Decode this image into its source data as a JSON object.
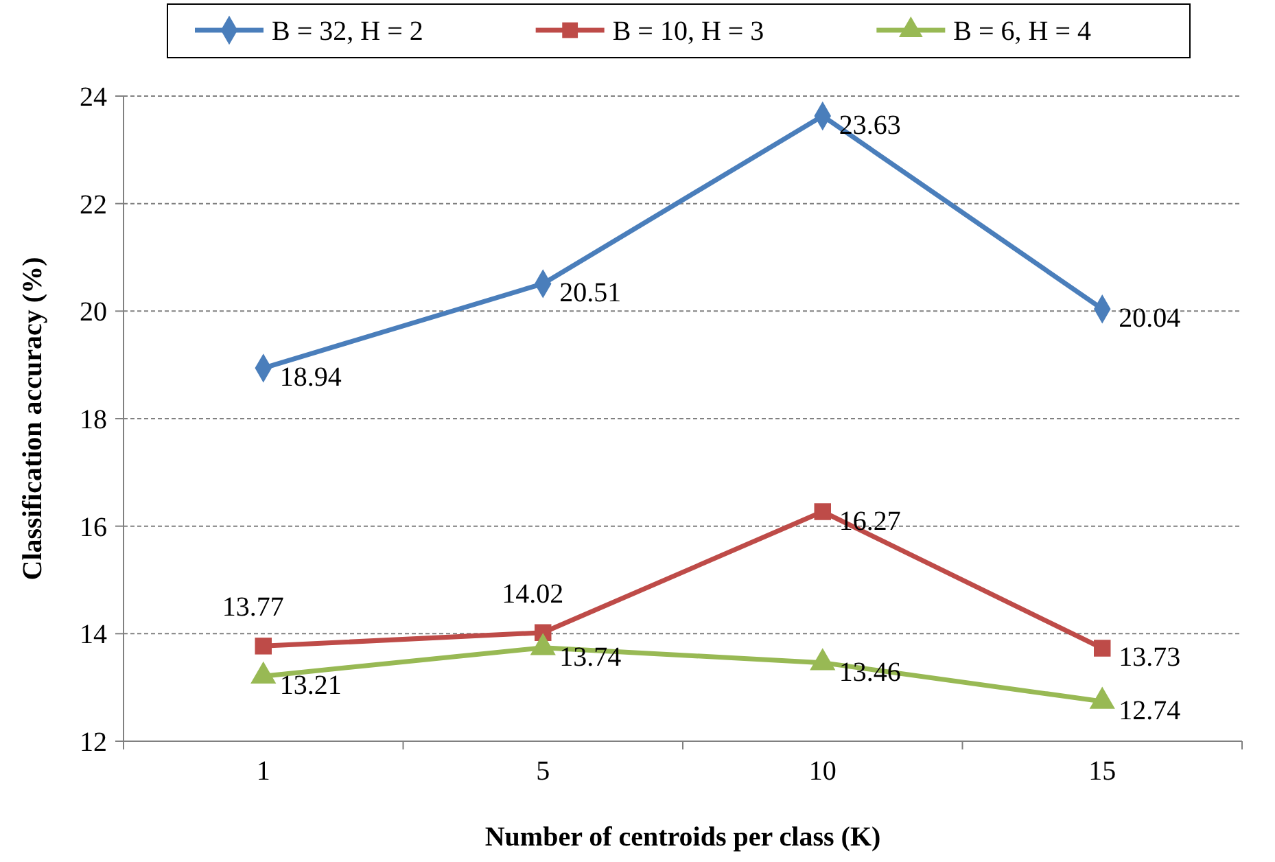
{
  "chart_data": {
    "type": "line",
    "xlabel": "Number of centroids per class (K)",
    "ylabel": "Classification accuracy (%)",
    "categories": [
      "1",
      "5",
      "10",
      "15"
    ],
    "series": [
      {
        "name": "B = 32, H = 2",
        "color": "#4a7ebb",
        "marker": "diamond",
        "values": [
          18.94,
          20.51,
          23.63,
          20.04
        ]
      },
      {
        "name": "B = 10, H = 3",
        "color": "#be4b48",
        "marker": "square",
        "values": [
          13.77,
          14.02,
          16.27,
          13.73
        ]
      },
      {
        "name": "B = 6, H = 4",
        "color": "#98b954",
        "marker": "triangle",
        "values": [
          13.21,
          13.74,
          13.46,
          12.74
        ]
      }
    ],
    "ylim": [
      12,
      24
    ],
    "yticks": [
      12,
      14,
      16,
      18,
      20,
      22,
      24
    ],
    "grid": "y",
    "legend": "top",
    "data_labels": true,
    "line_style": "solid"
  }
}
